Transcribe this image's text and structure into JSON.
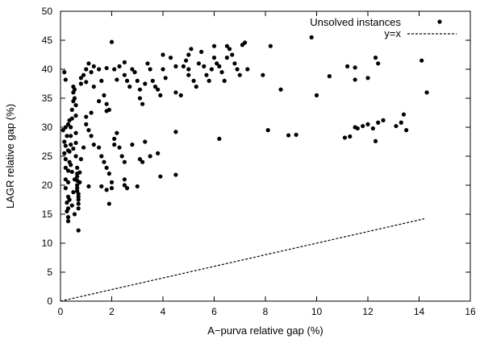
{
  "chart_data": {
    "type": "scatter",
    "title": "",
    "xlabel": "A−purva relative gap (%)",
    "ylabel": "LAGR relative gap (%)",
    "xlim": [
      0,
      16
    ],
    "ylim": [
      0,
      50
    ],
    "xticks": [
      0,
      2,
      4,
      6,
      8,
      10,
      12,
      14,
      16
    ],
    "yticks": [
      0,
      5,
      10,
      15,
      20,
      25,
      30,
      35,
      40,
      45,
      50
    ],
    "grid": false,
    "legend_position": "top-right",
    "series": [
      {
        "name": "Unsolved instances",
        "marker": "filled-circle",
        "color": "#000000",
        "points": [
          [
            0.1,
            29.5
          ],
          [
            0.15,
            27.5
          ],
          [
            0.15,
            25.5
          ],
          [
            0.2,
            26.8
          ],
          [
            0.2,
            24.5
          ],
          [
            0.2,
            23
          ],
          [
            0.2,
            21
          ],
          [
            0.2,
            19.5
          ],
          [
            0.25,
            17
          ],
          [
            0.25,
            15.5
          ],
          [
            0.3,
            14.5
          ],
          [
            0.3,
            13.8
          ],
          [
            0.3,
            16
          ],
          [
            0.3,
            18
          ],
          [
            0.3,
            20.5
          ],
          [
            0.3,
            22.5
          ],
          [
            0.35,
            24
          ],
          [
            0.35,
            25.8
          ],
          [
            0.4,
            27
          ],
          [
            0.4,
            28.5
          ],
          [
            0.4,
            30
          ],
          [
            0.45,
            31.5
          ],
          [
            0.45,
            33
          ],
          [
            0.5,
            34.5
          ],
          [
            0.5,
            36
          ],
          [
            0.5,
            37
          ],
          [
            0.55,
            36.5
          ],
          [
            0.55,
            35
          ],
          [
            0.6,
            33.8
          ],
          [
            0.6,
            32
          ],
          [
            0.6,
            29
          ],
          [
            0.6,
            27.3
          ],
          [
            0.6,
            25
          ],
          [
            0.65,
            23
          ],
          [
            0.65,
            22
          ],
          [
            0.65,
            21.5
          ],
          [
            0.65,
            20.8
          ],
          [
            0.65,
            20
          ],
          [
            0.65,
            19.5
          ],
          [
            0.65,
            19
          ],
          [
            0.7,
            18.5
          ],
          [
            0.7,
            18
          ],
          [
            0.7,
            17.5
          ],
          [
            0.7,
            16.8
          ],
          [
            0.7,
            16
          ],
          [
            0.55,
            15
          ],
          [
            0.45,
            16.5
          ],
          [
            0.35,
            17.5
          ],
          [
            0.5,
            18.8
          ],
          [
            0.55,
            21
          ],
          [
            0.45,
            22.3
          ],
          [
            0.4,
            23.5
          ],
          [
            0.3,
            26
          ],
          [
            0.25,
            28.5
          ],
          [
            0.5,
            26.3
          ],
          [
            0.75,
            20.5
          ],
          [
            0.75,
            22.2
          ],
          [
            0.8,
            24.5
          ],
          [
            0.9,
            26.5
          ],
          [
            0.7,
            12.2
          ],
          [
            0.8,
            37.5
          ],
          [
            0.8,
            38.5
          ],
          [
            0.9,
            39
          ],
          [
            1.0,
            40
          ],
          [
            1.1,
            41
          ],
          [
            1.2,
            39.5
          ],
          [
            1.3,
            40.5
          ],
          [
            1.5,
            40
          ],
          [
            1.6,
            38
          ],
          [
            1.8,
            40.2
          ],
          [
            2.0,
            44.7
          ],
          [
            2.1,
            40
          ],
          [
            2.3,
            40.5
          ],
          [
            2.5,
            41.2
          ],
          [
            2.5,
            39
          ],
          [
            2.6,
            38
          ],
          [
            2.7,
            37
          ],
          [
            2.8,
            40
          ],
          [
            2.9,
            39.5
          ],
          [
            3.0,
            38
          ],
          [
            3.1,
            36.5
          ],
          [
            3.1,
            35
          ],
          [
            3.2,
            34
          ],
          [
            3.3,
            37.5
          ],
          [
            3.4,
            41
          ],
          [
            3.5,
            40
          ],
          [
            3.6,
            38
          ],
          [
            3.7,
            37
          ],
          [
            3.8,
            36.5
          ],
          [
            3.9,
            35.5
          ],
          [
            4.0,
            42.5
          ],
          [
            4.0,
            40
          ],
          [
            4.1,
            38.5
          ],
          [
            4.3,
            42
          ],
          [
            4.5,
            40.5
          ],
          [
            4.5,
            36
          ],
          [
            4.7,
            35.5
          ],
          [
            4.8,
            40.5
          ],
          [
            4.9,
            41.5
          ],
          [
            5.0,
            42.5
          ],
          [
            5.0,
            40
          ],
          [
            5.0,
            39
          ],
          [
            5.1,
            43.5
          ],
          [
            5.2,
            38
          ],
          [
            5.3,
            37
          ],
          [
            5.4,
            41
          ],
          [
            5.5,
            43
          ],
          [
            5.6,
            40.5
          ],
          [
            5.7,
            39
          ],
          [
            5.8,
            38
          ],
          [
            5.9,
            40
          ],
          [
            6.0,
            44
          ],
          [
            6.0,
            42
          ],
          [
            6.1,
            41
          ],
          [
            6.2,
            40.5
          ],
          [
            6.3,
            39.5
          ],
          [
            6.4,
            38
          ],
          [
            6.5,
            42
          ],
          [
            6.5,
            44
          ],
          [
            6.6,
            43.5
          ],
          [
            6.7,
            42.5
          ],
          [
            6.8,
            41
          ],
          [
            6.9,
            40
          ],
          [
            7.0,
            39
          ],
          [
            7.1,
            44.2
          ],
          [
            7.2,
            44.6
          ],
          [
            7.3,
            40
          ],
          [
            7.9,
            39
          ],
          [
            8.2,
            44
          ],
          [
            8.6,
            36.5
          ],
          [
            9.8,
            45.5
          ],
          [
            10.0,
            35.5
          ],
          [
            10.5,
            38.8
          ],
          [
            11.2,
            40.5
          ],
          [
            11.5,
            40.3
          ],
          [
            11.5,
            38.2
          ],
          [
            12.0,
            38.5
          ],
          [
            12.3,
            42
          ],
          [
            12.4,
            41
          ],
          [
            14.1,
            41.5
          ],
          [
            14.3,
            36
          ],
          [
            1.0,
            37.8
          ],
          [
            1.3,
            37
          ],
          [
            1.5,
            34.5
          ],
          [
            1.7,
            35.5
          ],
          [
            1.8,
            34
          ],
          [
            1.8,
            32.8
          ],
          [
            1.9,
            33
          ],
          [
            1.2,
            32.5
          ],
          [
            1.0,
            31.8
          ],
          [
            1.0,
            30.5
          ],
          [
            1.1,
            29.5
          ],
          [
            1.2,
            28.5
          ],
          [
            1.3,
            27
          ],
          [
            1.5,
            26.5
          ],
          [
            1.6,
            25
          ],
          [
            1.7,
            24
          ],
          [
            1.8,
            23
          ],
          [
            1.9,
            22
          ],
          [
            2.0,
            20.5
          ],
          [
            2.0,
            19.5
          ],
          [
            1.6,
            19.8
          ],
          [
            1.8,
            19.2
          ],
          [
            1.9,
            16.8
          ],
          [
            1.1,
            19.8
          ],
          [
            2.1,
            27
          ],
          [
            2.1,
            28
          ],
          [
            2.2,
            29
          ],
          [
            2.3,
            26.5
          ],
          [
            2.4,
            25
          ],
          [
            2.5,
            24
          ],
          [
            2.5,
            21
          ],
          [
            2.5,
            20
          ],
          [
            2.6,
            19.5
          ],
          [
            2.8,
            27
          ],
          [
            3.0,
            19.8
          ],
          [
            3.1,
            24.5
          ],
          [
            3.2,
            24
          ],
          [
            3.3,
            27.5
          ],
          [
            3.5,
            25
          ],
          [
            3.8,
            25.5
          ],
          [
            3.9,
            21.5
          ],
          [
            4.5,
            21.8
          ],
          [
            4.5,
            29.2
          ],
          [
            6.2,
            28
          ],
          [
            8.1,
            29.5
          ],
          [
            8.9,
            28.6
          ],
          [
            9.2,
            28.7
          ],
          [
            11.1,
            28.2
          ],
          [
            11.3,
            28.4
          ],
          [
            11.5,
            30
          ],
          [
            11.6,
            29.8
          ],
          [
            11.8,
            30.2
          ],
          [
            12.0,
            30.5
          ],
          [
            12.2,
            29.8
          ],
          [
            12.3,
            27.6
          ],
          [
            12.4,
            30.8
          ],
          [
            12.6,
            31.2
          ],
          [
            13.1,
            30.2
          ],
          [
            13.3,
            30.8
          ],
          [
            13.5,
            29.5
          ],
          [
            13.4,
            32.2
          ],
          [
            0.2,
            30
          ],
          [
            0.3,
            30.5
          ],
          [
            0.35,
            31.2
          ],
          [
            0.2,
            38.2
          ],
          [
            0.15,
            39.5
          ],
          [
            2.2,
            38.2
          ]
        ]
      },
      {
        "name": "y=x",
        "style": "dashed-line",
        "color": "#000000",
        "x": [
          0,
          14.2
        ],
        "y": [
          0,
          14.2
        ]
      }
    ]
  }
}
